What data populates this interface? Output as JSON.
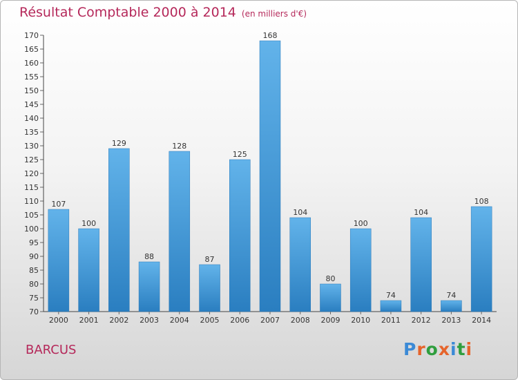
{
  "header": {
    "title": "Résultat Comptable 2000 à 2014",
    "unit": "(en milliers d'€)"
  },
  "footer": {
    "commune": "BARCUS",
    "logo_text": "Proxiti"
  },
  "colors": {
    "title": "#b5285a",
    "bar_light": "#62b3ea",
    "bar_dark": "#2a7ec0",
    "axis_text": "#333333",
    "logo_letters": [
      "#3b8ad6",
      "#e6642b",
      "#2f9e3e",
      "#e6642b",
      "#3b8ad6",
      "#2f9e3e",
      "#e6642b"
    ]
  },
  "chart_data": {
    "type": "bar",
    "title": "Résultat Comptable 2000 à 2014",
    "xlabel": "",
    "ylabel": "",
    "ylim": [
      70,
      170
    ],
    "ytick_step": 5,
    "categories": [
      "2000",
      "2001",
      "2002",
      "2003",
      "2004",
      "2005",
      "2006",
      "2007",
      "2008",
      "2009",
      "2010",
      "2011",
      "2012",
      "2013",
      "2014"
    ],
    "values": [
      107,
      100,
      129,
      88,
      128,
      87,
      125,
      168,
      104,
      80,
      100,
      74,
      104,
      74,
      108
    ]
  }
}
